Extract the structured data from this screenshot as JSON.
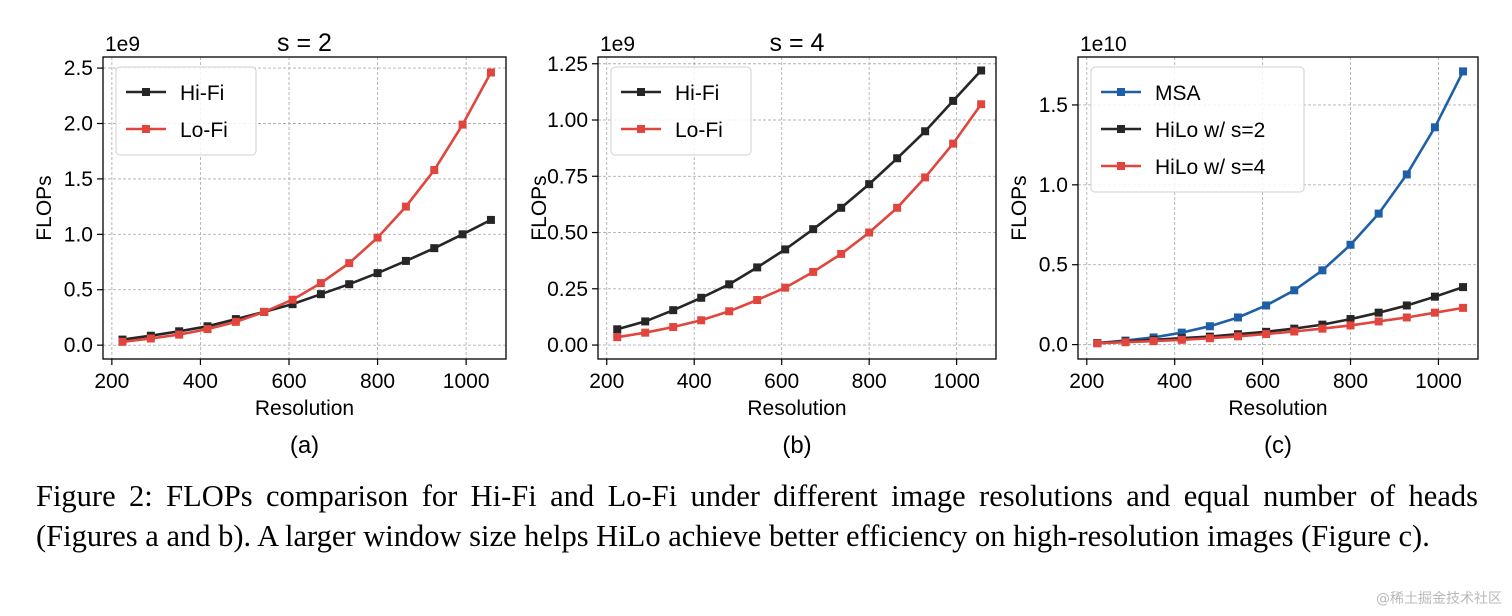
{
  "figure": {
    "caption": "Figure 2: FLOPs comparison for Hi-Fi and Lo-Fi under different image resolutions and equal number of heads (Figures a and b). A larger window size helps HiLo achieve better efficiency on high-resolution images (Figure c).",
    "watermark": "@稀土掘金技术社区"
  },
  "colors": {
    "hifi": "#262626",
    "lofi": "#e0463d",
    "msa": "#1f5fa8",
    "grid": "#b0b0b0"
  },
  "chart_data": [
    {
      "id": "a",
      "type": "line",
      "title": "s = 2",
      "label": "(a)",
      "xlabel": "Resolution",
      "ylabel": "FLOPs",
      "scale_label": "1e9",
      "xlim": [
        180,
        1090
      ],
      "ylim": [
        -0.125,
        2.6
      ],
      "xticks": [
        200,
        400,
        600,
        800,
        1000
      ],
      "yticks": [
        0.0,
        0.5,
        1.0,
        1.5,
        2.0,
        2.5
      ],
      "ytick_labels": [
        "0.0",
        "0.5",
        "1.0",
        "1.5",
        "2.0",
        "2.5"
      ],
      "grid": true,
      "legend_position": "top-left",
      "x": [
        224,
        288,
        352,
        416,
        480,
        544,
        608,
        672,
        736,
        800,
        864,
        928,
        992,
        1056
      ],
      "series": [
        {
          "name": "Hi-Fi",
          "color": "#262626",
          "values": [
            0.05,
            0.085,
            0.125,
            0.17,
            0.235,
            0.3,
            0.37,
            0.46,
            0.55,
            0.65,
            0.76,
            0.875,
            1.0,
            1.13
          ]
        },
        {
          "name": "Lo-Fi",
          "color": "#e0463d",
          "values": [
            0.03,
            0.06,
            0.095,
            0.145,
            0.21,
            0.3,
            0.41,
            0.56,
            0.74,
            0.97,
            1.25,
            1.58,
            1.99,
            2.46
          ]
        }
      ]
    },
    {
      "id": "b",
      "type": "line",
      "title": "s = 4",
      "label": "(b)",
      "xlabel": "Resolution",
      "ylabel": "FLOPs",
      "scale_label": "1e9",
      "xlim": [
        180,
        1090
      ],
      "ylim": [
        -0.062,
        1.28
      ],
      "xticks": [
        200,
        400,
        600,
        800,
        1000
      ],
      "yticks": [
        0.0,
        0.25,
        0.5,
        0.75,
        1.0,
        1.25
      ],
      "ytick_labels": [
        "0.00",
        "0.25",
        "0.50",
        "0.75",
        "1.00",
        "1.25"
      ],
      "grid": true,
      "legend_position": "top-left",
      "x": [
        224,
        288,
        352,
        416,
        480,
        544,
        608,
        672,
        736,
        800,
        864,
        928,
        992,
        1056
      ],
      "series": [
        {
          "name": "Hi-Fi",
          "color": "#262626",
          "values": [
            0.07,
            0.105,
            0.155,
            0.21,
            0.27,
            0.345,
            0.425,
            0.515,
            0.61,
            0.715,
            0.83,
            0.95,
            1.085,
            1.22
          ]
        },
        {
          "name": "Lo-Fi",
          "color": "#e0463d",
          "values": [
            0.035,
            0.055,
            0.08,
            0.11,
            0.15,
            0.2,
            0.255,
            0.325,
            0.405,
            0.5,
            0.61,
            0.745,
            0.895,
            1.07
          ]
        }
      ]
    },
    {
      "id": "c",
      "type": "line",
      "title": "",
      "label": "(c)",
      "xlabel": "Resolution",
      "ylabel": "FLOPs",
      "scale_label": "1e10",
      "xlim": [
        180,
        1090
      ],
      "ylim": [
        -0.09,
        1.8
      ],
      "xticks": [
        200,
        400,
        600,
        800,
        1000
      ],
      "yticks": [
        0.0,
        0.5,
        1.0,
        1.5
      ],
      "ytick_labels": [
        "0.0",
        "0.5",
        "1.0",
        "1.5"
      ],
      "grid": true,
      "legend_position": "top-left",
      "x": [
        224,
        288,
        352,
        416,
        480,
        544,
        608,
        672,
        736,
        800,
        864,
        928,
        992,
        1056
      ],
      "series": [
        {
          "name": "MSA",
          "color": "#1f5fa8",
          "values": [
            0.01,
            0.025,
            0.045,
            0.075,
            0.115,
            0.17,
            0.245,
            0.34,
            0.465,
            0.625,
            0.82,
            1.065,
            1.36,
            1.71
          ]
        },
        {
          "name": "HiLo w/ s=2",
          "color": "#262626",
          "values": [
            0.01,
            0.02,
            0.03,
            0.04,
            0.05,
            0.065,
            0.08,
            0.1,
            0.125,
            0.16,
            0.2,
            0.245,
            0.3,
            0.36
          ]
        },
        {
          "name": "HiLo w/ s=4",
          "color": "#e0463d",
          "values": [
            0.008,
            0.015,
            0.022,
            0.03,
            0.04,
            0.052,
            0.066,
            0.082,
            0.1,
            0.12,
            0.145,
            0.17,
            0.2,
            0.23
          ]
        }
      ]
    }
  ]
}
